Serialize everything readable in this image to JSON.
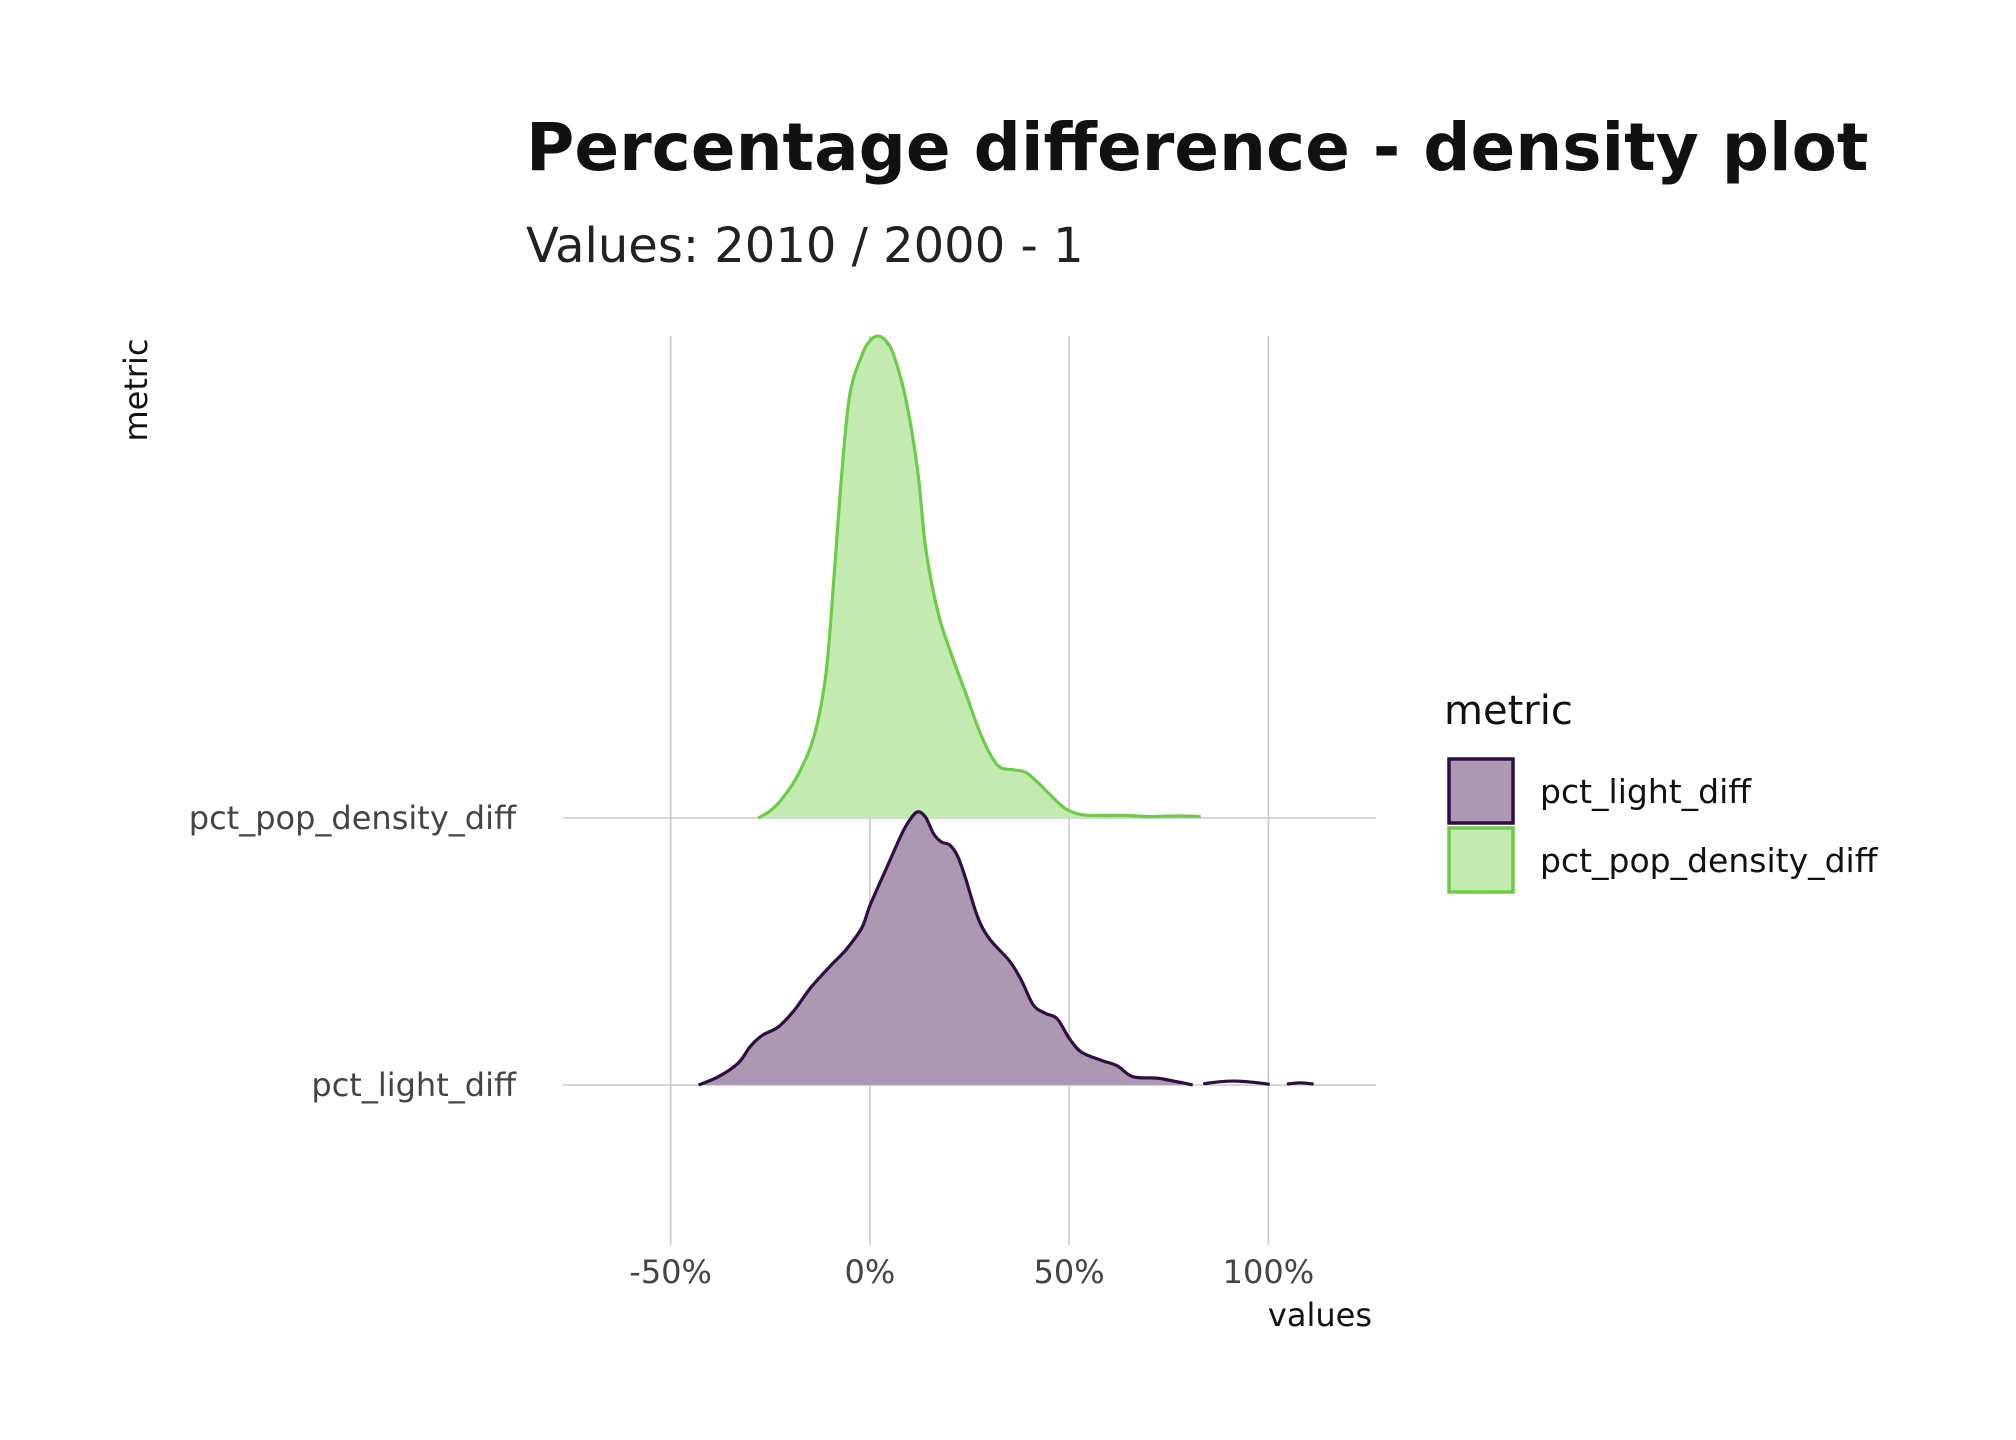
{
  "chart_data": {
    "type": "area",
    "title": "Percentage difference - density plot",
    "subtitle": "Values: 2010 / 2000 - 1",
    "xlabel": "values",
    "ylabel": "metric",
    "x_ticks": [
      {
        "value": -0.5,
        "label": "-50%"
      },
      {
        "value": 0,
        "label": "0%"
      },
      {
        "value": 0.5,
        "label": "50%"
      },
      {
        "value": 1.0,
        "label": "100%"
      }
    ],
    "xlim": [
      -0.77,
      1.27
    ],
    "categories": [
      "pct_light_diff",
      "pct_pop_density_diff"
    ],
    "grid": true,
    "legend": {
      "title": "metric",
      "position": "right",
      "entries": [
        "pct_light_diff",
        "pct_pop_density_diff"
      ]
    },
    "series": [
      {
        "name": "pct_light_diff",
        "fill": "#ad98b4",
        "stroke": "#2f0f42",
        "points": [
          [
            -0.43,
            0.0
          ],
          [
            -0.38,
            0.03
          ],
          [
            -0.33,
            0.08
          ],
          [
            -0.3,
            0.14
          ],
          [
            -0.27,
            0.18
          ],
          [
            -0.23,
            0.21
          ],
          [
            -0.19,
            0.27
          ],
          [
            -0.15,
            0.35
          ],
          [
            -0.1,
            0.43
          ],
          [
            -0.06,
            0.49
          ],
          [
            -0.02,
            0.57
          ],
          [
            0.0,
            0.65
          ],
          [
            0.04,
            0.78
          ],
          [
            0.08,
            0.91
          ],
          [
            0.1,
            0.96
          ],
          [
            0.12,
            0.99
          ],
          [
            0.14,
            0.97
          ],
          [
            0.16,
            0.91
          ],
          [
            0.18,
            0.88
          ],
          [
            0.2,
            0.87
          ],
          [
            0.22,
            0.83
          ],
          [
            0.24,
            0.75
          ],
          [
            0.27,
            0.61
          ],
          [
            0.3,
            0.53
          ],
          [
            0.35,
            0.45
          ],
          [
            0.38,
            0.38
          ],
          [
            0.41,
            0.29
          ],
          [
            0.44,
            0.26
          ],
          [
            0.47,
            0.24
          ],
          [
            0.5,
            0.17
          ],
          [
            0.53,
            0.12
          ],
          [
            0.58,
            0.09
          ],
          [
            0.62,
            0.07
          ],
          [
            0.66,
            0.03
          ],
          [
            0.72,
            0.025
          ],
          [
            0.77,
            0.012
          ],
          [
            0.81,
            0.0
          ]
        ],
        "tail_segments": [
          [
            [
              0.84,
              0.005
            ],
            [
              0.88,
              0.012
            ],
            [
              0.92,
              0.014
            ],
            [
              0.96,
              0.01
            ],
            [
              1.0,
              0.003
            ]
          ],
          [
            [
              1.05,
              0.004
            ],
            [
              1.08,
              0.008
            ],
            [
              1.11,
              0.004
            ]
          ]
        ]
      },
      {
        "name": "pct_pop_density_diff",
        "fill": "#c3eab1",
        "stroke": "#6bcd46",
        "points": [
          [
            -0.28,
            0.0
          ],
          [
            -0.25,
            0.015
          ],
          [
            -0.22,
            0.04
          ],
          [
            -0.18,
            0.09
          ],
          [
            -0.14,
            0.17
          ],
          [
            -0.11,
            0.3
          ],
          [
            -0.09,
            0.5
          ],
          [
            -0.07,
            0.72
          ],
          [
            -0.05,
            0.88
          ],
          [
            -0.02,
            0.96
          ],
          [
            0.0,
            0.99
          ],
          [
            0.02,
            1.0
          ],
          [
            0.04,
            0.99
          ],
          [
            0.06,
            0.96
          ],
          [
            0.09,
            0.87
          ],
          [
            0.12,
            0.72
          ],
          [
            0.14,
            0.56
          ],
          [
            0.17,
            0.43
          ],
          [
            0.2,
            0.35
          ],
          [
            0.24,
            0.26
          ],
          [
            0.28,
            0.17
          ],
          [
            0.32,
            0.11
          ],
          [
            0.36,
            0.1
          ],
          [
            0.39,
            0.095
          ],
          [
            0.42,
            0.075
          ],
          [
            0.45,
            0.05
          ],
          [
            0.49,
            0.02
          ],
          [
            0.53,
            0.007
          ],
          [
            0.58,
            0.005
          ],
          [
            0.65,
            0.005
          ],
          [
            0.7,
            0.003
          ],
          [
            0.75,
            0.004
          ],
          [
            0.8,
            0.004
          ],
          [
            0.83,
            0.003
          ]
        ]
      }
    ]
  }
}
